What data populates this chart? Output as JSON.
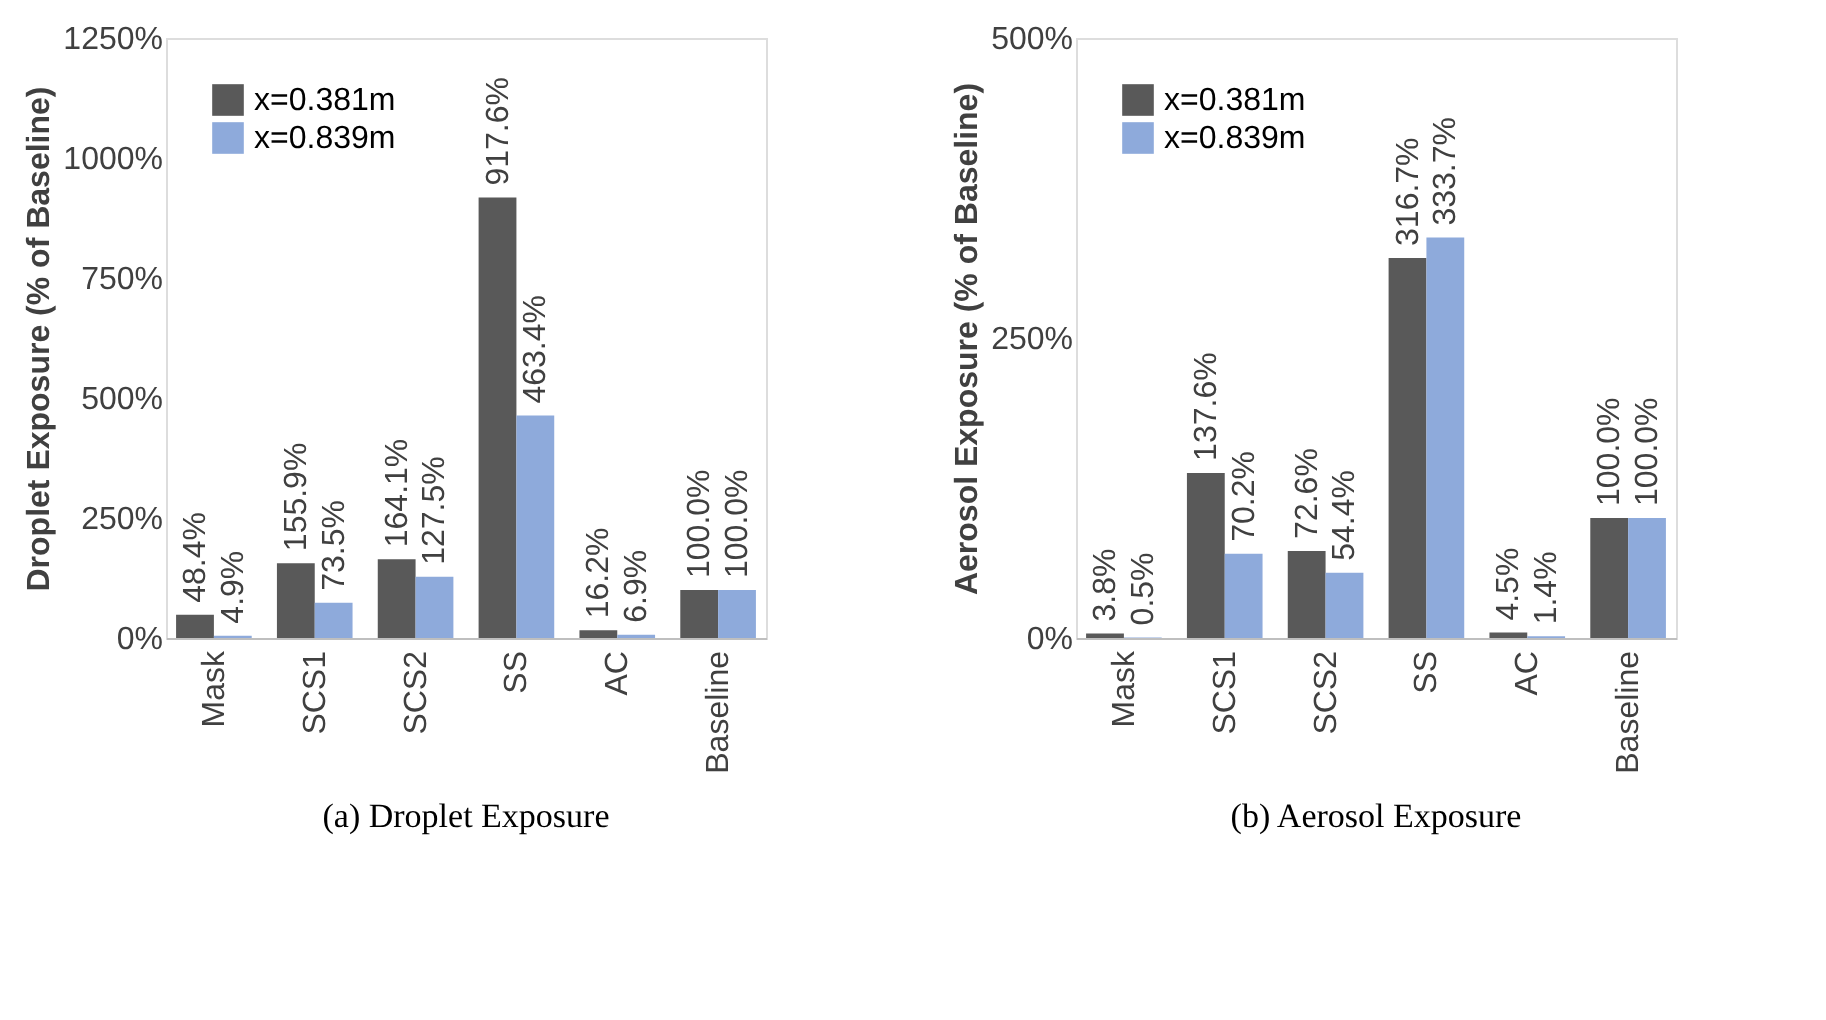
{
  "chart_data": [
    {
      "type": "bar",
      "title": "(a)  Droplet Exposure",
      "ylabel": "Droplet Exposure (% of Baseline)",
      "categories": [
        "Mask",
        "SCS1",
        "SCS2",
        "SS",
        "AC",
        "Baseline"
      ],
      "series": [
        {
          "name": "x=0.381m",
          "color": "#595959",
          "values": [
            48.4,
            155.9,
            164.1,
            917.6,
            16.2,
            100.0
          ],
          "value_labels": [
            "48.4%",
            "155.9%",
            "164.1%",
            "917.6%",
            "16.2%",
            "100.0%"
          ]
        },
        {
          "name": "x=0.839m",
          "color": "#8eaadb",
          "values": [
            4.9,
            73.5,
            127.5,
            463.4,
            6.9,
            100.0
          ],
          "value_labels": [
            "4.9%",
            "73.5%",
            "127.5%",
            "463.4%",
            "6.9%",
            "100.0%"
          ]
        }
      ],
      "ylim": [
        0,
        1250
      ],
      "yticks": [
        {
          "value": 0,
          "label": "0%"
        },
        {
          "value": 250,
          "label": "250%"
        },
        {
          "value": 500,
          "label": "500%"
        },
        {
          "value": 750,
          "label": "750%"
        },
        {
          "value": 1000,
          "label": "1000%"
        },
        {
          "value": 1250,
          "label": "1250%"
        }
      ],
      "legend": "top left",
      "grid": false
    },
    {
      "type": "bar",
      "title": "(b)  Aerosol Exposure",
      "ylabel": "Aerosol Exposure (% of Baseline)",
      "categories": [
        "Mask",
        "SCS1",
        "SCS2",
        "SS",
        "AC",
        "Baseline"
      ],
      "series": [
        {
          "name": "x=0.381m",
          "color": "#595959",
          "values": [
            3.8,
            137.6,
            72.6,
            316.7,
            4.5,
            100.0
          ],
          "value_labels": [
            "3.8%",
            "137.6%",
            "72.6%",
            "316.7%",
            "4.5%",
            "100.0%"
          ]
        },
        {
          "name": "x=0.839m",
          "color": "#8eaadb",
          "values": [
            0.5,
            70.2,
            54.4,
            333.7,
            1.4,
            100.0
          ],
          "value_labels": [
            "0.5%",
            "70.2%",
            "54.4%",
            "333.7%",
            "1.4%",
            "100.0%"
          ]
        }
      ],
      "ylim": [
        0,
        500
      ],
      "yticks": [
        {
          "value": 0,
          "label": "0%"
        },
        {
          "value": 250,
          "label": "250%"
        },
        {
          "value": 500,
          "label": "500%"
        }
      ],
      "legend": "top left",
      "grid": false
    }
  ]
}
